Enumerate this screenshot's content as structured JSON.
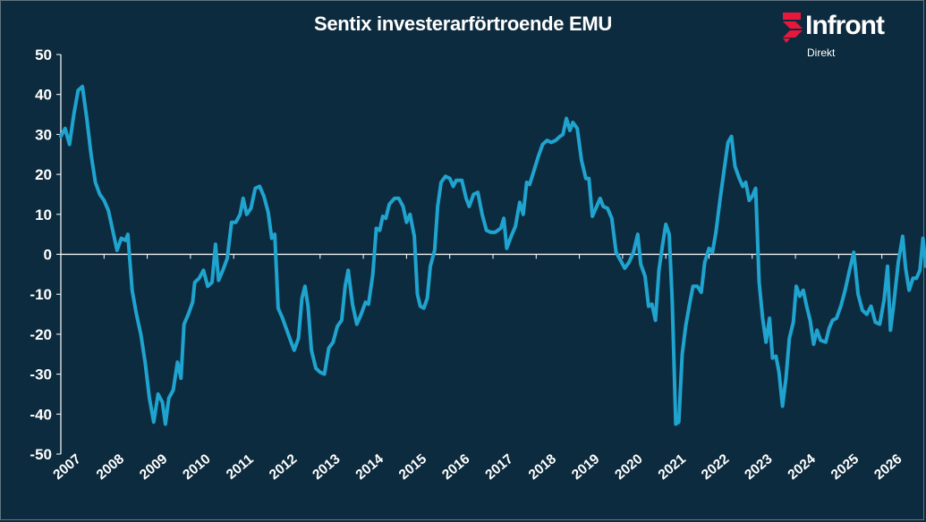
{
  "brand": {
    "name": "Infront",
    "subtitle": "Direkt",
    "accent_color": "#e8173c"
  },
  "chart_data": {
    "type": "line",
    "title": "Sentix investerarförtroende EMU",
    "xlabel": "",
    "ylabel": "",
    "ylim": [
      -50,
      50
    ],
    "yticks": [
      50,
      40,
      30,
      20,
      10,
      0,
      -10,
      -20,
      -30,
      -40,
      -50
    ],
    "xlim": [
      2007,
      2026.4
    ],
    "xticks": [
      "2007",
      "2008",
      "2009",
      "2010",
      "2011",
      "2012",
      "2013",
      "2014",
      "2015",
      "2016",
      "2017",
      "2018",
      "2019",
      "2020",
      "2021",
      "2022",
      "2023",
      "2024",
      "2025",
      "2026"
    ],
    "grid": false,
    "legend": "none",
    "line_color": "#1fa3cf",
    "series": [
      {
        "name": "Sentix EMU",
        "points": [
          [
            2007.0,
            29.5
          ],
          [
            2007.1,
            31.5
          ],
          [
            2007.2,
            27.5
          ],
          [
            2007.3,
            35.0
          ],
          [
            2007.4,
            41.0
          ],
          [
            2007.5,
            42.0
          ],
          [
            2007.6,
            34.0
          ],
          [
            2007.7,
            25.0
          ],
          [
            2007.8,
            18.0
          ],
          [
            2007.9,
            15.0
          ],
          [
            2008.0,
            13.5
          ],
          [
            2008.1,
            11.0
          ],
          [
            2008.2,
            6.0
          ],
          [
            2008.3,
            1.0
          ],
          [
            2008.4,
            4.0
          ],
          [
            2008.5,
            3.5
          ],
          [
            2008.55,
            5.0
          ],
          [
            2008.65,
            -9.0
          ],
          [
            2008.75,
            -15.0
          ],
          [
            2008.85,
            -20.0
          ],
          [
            2008.95,
            -27.0
          ],
          [
            2009.05,
            -36.0
          ],
          [
            2009.15,
            -42.0
          ],
          [
            2009.25,
            -35.0
          ],
          [
            2009.35,
            -37.0
          ],
          [
            2009.42,
            -42.5
          ],
          [
            2009.5,
            -36.0
          ],
          [
            2009.6,
            -34.0
          ],
          [
            2009.7,
            -27.0
          ],
          [
            2009.78,
            -31.0
          ],
          [
            2009.85,
            -17.5
          ],
          [
            2009.95,
            -15.0
          ],
          [
            2010.05,
            -12.0
          ],
          [
            2010.1,
            -7.0
          ],
          [
            2010.2,
            -6.0
          ],
          [
            2010.3,
            -4.0
          ],
          [
            2010.4,
            -8.0
          ],
          [
            2010.5,
            -7.0
          ],
          [
            2010.58,
            2.5
          ],
          [
            2010.65,
            -6.5
          ],
          [
            2010.75,
            -4.0
          ],
          [
            2010.85,
            -1.0
          ],
          [
            2010.95,
            8.0
          ],
          [
            2011.05,
            8.0
          ],
          [
            2011.15,
            10.0
          ],
          [
            2011.22,
            14.0
          ],
          [
            2011.3,
            10.0
          ],
          [
            2011.4,
            11.5
          ],
          [
            2011.5,
            16.5
          ],
          [
            2011.6,
            17.0
          ],
          [
            2011.7,
            14.5
          ],
          [
            2011.8,
            10.5
          ],
          [
            2011.88,
            4.0
          ],
          [
            2011.95,
            5.0
          ],
          [
            2012.03,
            -13.5
          ],
          [
            2012.13,
            -16.0
          ],
          [
            2012.23,
            -19.0
          ],
          [
            2012.33,
            -22.0
          ],
          [
            2012.4,
            -24.0
          ],
          [
            2012.5,
            -21.0
          ],
          [
            2012.58,
            -11.0
          ],
          [
            2012.65,
            -8.0
          ],
          [
            2012.72,
            -13.0
          ],
          [
            2012.8,
            -24.0
          ],
          [
            2012.9,
            -28.5
          ],
          [
            2013.0,
            -29.5
          ],
          [
            2013.1,
            -30.0
          ],
          [
            2013.2,
            -23.5
          ],
          [
            2013.3,
            -22.0
          ],
          [
            2013.4,
            -18.0
          ],
          [
            2013.5,
            -16.5
          ],
          [
            2013.58,
            -8.0
          ],
          [
            2013.65,
            -4.0
          ],
          [
            2013.75,
            -12.5
          ],
          [
            2013.85,
            -17.5
          ],
          [
            2013.95,
            -15.0
          ],
          [
            2014.05,
            -12.0
          ],
          [
            2014.12,
            -12.5
          ],
          [
            2014.22,
            -5.0
          ],
          [
            2014.3,
            6.5
          ],
          [
            2014.38,
            6.0
          ],
          [
            2014.45,
            9.5
          ],
          [
            2014.52,
            9.0
          ],
          [
            2014.6,
            12.5
          ],
          [
            2014.72,
            14.0
          ],
          [
            2014.82,
            14.0
          ],
          [
            2014.92,
            12.0
          ],
          [
            2015.0,
            8.0
          ],
          [
            2015.08,
            10.0
          ],
          [
            2015.18,
            4.5
          ],
          [
            2015.25,
            -10.0
          ],
          [
            2015.32,
            -13.0
          ],
          [
            2015.4,
            -13.5
          ],
          [
            2015.48,
            -11.0
          ],
          [
            2015.55,
            -3.0
          ],
          [
            2015.65,
            1.0
          ],
          [
            2015.72,
            12.0
          ],
          [
            2015.8,
            18.0
          ],
          [
            2015.9,
            19.5
          ],
          [
            2016.0,
            19.0
          ],
          [
            2016.08,
            17.0
          ],
          [
            2016.15,
            18.5
          ],
          [
            2016.28,
            18.5
          ],
          [
            2016.38,
            14.0
          ],
          [
            2016.45,
            12.0
          ],
          [
            2016.55,
            15.0
          ],
          [
            2016.65,
            15.5
          ],
          [
            2016.75,
            10.0
          ],
          [
            2016.85,
            6.0
          ],
          [
            2016.95,
            5.5
          ],
          [
            2017.05,
            5.5
          ],
          [
            2017.18,
            6.5
          ],
          [
            2017.25,
            9.0
          ],
          [
            2017.32,
            1.5
          ],
          [
            2017.42,
            4.5
          ],
          [
            2017.52,
            7.0
          ],
          [
            2017.62,
            13.0
          ],
          [
            2017.7,
            10.0
          ],
          [
            2017.78,
            18.0
          ],
          [
            2017.85,
            17.5
          ],
          [
            2017.95,
            21.0
          ],
          [
            2018.05,
            24.5
          ],
          [
            2018.15,
            27.5
          ],
          [
            2018.25,
            28.5
          ],
          [
            2018.35,
            28.0
          ],
          [
            2018.45,
            28.5
          ],
          [
            2018.55,
            29.5
          ],
          [
            2018.62,
            30.0
          ],
          [
            2018.7,
            34.0
          ],
          [
            2018.78,
            31.0
          ],
          [
            2018.85,
            33.0
          ],
          [
            2018.95,
            31.5
          ],
          [
            2019.05,
            23.5
          ],
          [
            2019.15,
            19.0
          ],
          [
            2019.22,
            19.0
          ],
          [
            2019.3,
            9.5
          ],
          [
            2019.4,
            12.0
          ],
          [
            2019.48,
            14.0
          ],
          [
            2019.55,
            12.0
          ],
          [
            2019.65,
            11.5
          ],
          [
            2019.75,
            9.0
          ],
          [
            2019.85,
            0.5
          ],
          [
            2019.95,
            -1.5
          ],
          [
            2020.05,
            -3.5
          ],
          [
            2020.15,
            -2.0
          ],
          [
            2020.25,
            0.5
          ],
          [
            2020.35,
            5.0
          ],
          [
            2020.42,
            -2.5
          ],
          [
            2020.52,
            -5.5
          ],
          [
            2020.6,
            -13.0
          ],
          [
            2020.68,
            -12.5
          ],
          [
            2020.76,
            -16.5
          ],
          [
            2020.84,
            -4.0
          ],
          [
            2020.92,
            2.0
          ],
          [
            2021.0,
            7.5
          ],
          [
            2021.08,
            5.0
          ],
          [
            2021.15,
            -12.0
          ],
          [
            2021.23,
            -42.5
          ],
          [
            2021.3,
            -42.0
          ],
          [
            2021.38,
            -25.0
          ],
          [
            2021.46,
            -18.0
          ],
          [
            2021.55,
            -12.5
          ],
          [
            2021.63,
            -8.0
          ],
          [
            2021.73,
            -8.0
          ],
          [
            2021.82,
            -9.5
          ],
          [
            2021.9,
            -2.0
          ],
          [
            2022.0,
            1.5
          ],
          [
            2022.08,
            0.5
          ],
          [
            2022.16,
            5.5
          ],
          [
            2022.26,
            14.0
          ],
          [
            2022.36,
            22.0
          ],
          [
            2022.44,
            28.0
          ],
          [
            2022.52,
            29.5
          ],
          [
            2022.6,
            22.0
          ],
          [
            2022.7,
            19.0
          ],
          [
            2022.78,
            17.0
          ],
          [
            2022.85,
            18.0
          ],
          [
            2022.93,
            13.5
          ],
          [
            2023.0,
            14.5
          ],
          [
            2023.08,
            16.5
          ],
          [
            2023.16,
            -7.0
          ],
          [
            2023.24,
            -16.0
          ],
          [
            2023.32,
            -22.0
          ],
          [
            2023.4,
            -16.0
          ],
          [
            2023.47,
            -26.0
          ],
          [
            2023.55,
            -25.5
          ],
          [
            2023.62,
            -29.5
          ],
          [
            2023.7,
            -38.0
          ],
          [
            2023.78,
            -31.0
          ],
          [
            2023.86,
            -21.0
          ],
          [
            2023.95,
            -17.0
          ],
          [
            2024.02,
            -8.0
          ],
          [
            2024.1,
            -10.5
          ],
          [
            2024.18,
            -9.0
          ],
          [
            2024.26,
            -13.0
          ],
          [
            2024.34,
            -16.5
          ],
          [
            2024.42,
            -22.5
          ],
          [
            2024.5,
            -19.0
          ],
          [
            2024.58,
            -21.5
          ],
          [
            2024.7,
            -22.0
          ],
          [
            2024.78,
            -18.5
          ],
          [
            2024.86,
            -16.5
          ],
          [
            2024.95,
            -16.0
          ],
          [
            2025.05,
            -13.0
          ],
          [
            2025.15,
            -9.0
          ],
          [
            2025.25,
            -4.0
          ],
          [
            2025.35,
            0.5
          ],
          [
            2025.45,
            -10.0
          ],
          [
            2025.55,
            -14.0
          ],
          [
            2025.65,
            -15.0
          ],
          [
            2025.75,
            -13.0
          ],
          [
            2025.85,
            -17.0
          ],
          [
            2025.95,
            -17.5
          ],
          [
            2026.05,
            -11.5
          ],
          [
            2026.13,
            -3.0
          ],
          [
            2026.2,
            -19.0
          ],
          [
            2026.28,
            -12.0
          ],
          [
            2026.38,
            -2.0
          ],
          [
            2026.48,
            4.5
          ],
          [
            2026.55,
            -3.5
          ],
          [
            2026.63,
            -9.0
          ],
          [
            2026.72,
            -6.0
          ],
          [
            2026.8,
            -6.0
          ],
          [
            2026.88,
            -4.0
          ],
          [
            2026.95,
            4.0
          ],
          [
            2027.02,
            -3.0
          ]
        ]
      }
    ]
  }
}
